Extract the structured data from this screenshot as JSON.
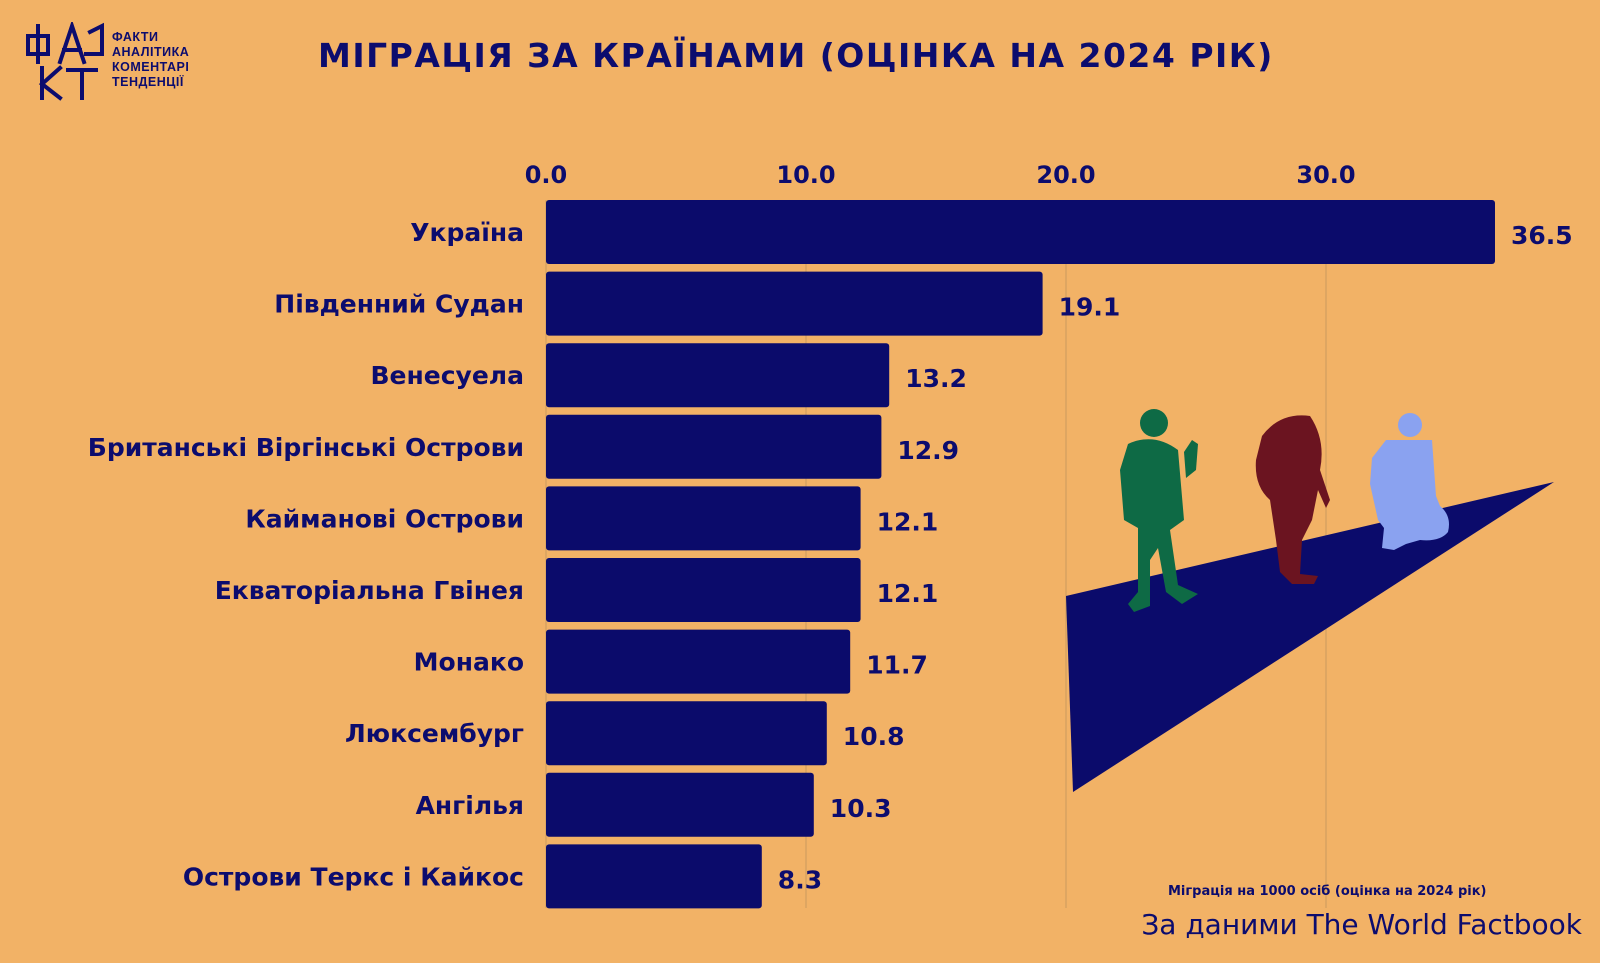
{
  "header": {
    "title": "МІГРАЦІЯ ЗА КРАЇНАМИ (ОЦІНКА НА 2024 РІК)",
    "logo_mark": "ФАКТ",
    "logo_lines": [
      "ФАКТИ",
      "АНАЛІТИКА",
      "КОМЕНТАРІ",
      "ТЕНДЕНЦІЇ"
    ]
  },
  "chart_data": {
    "type": "bar",
    "orientation": "horizontal",
    "categories": [
      "Україна",
      "Південний Судан",
      "Венесуела",
      "Британські Віргінські Острови",
      "Кайманові Острови",
      "Екваторіальна Гвінея",
      "Монако",
      "Люксембург",
      "Ангілья",
      "Острови Теркс і Кайкос"
    ],
    "values": [
      36.5,
      19.1,
      13.2,
      12.9,
      12.1,
      12.1,
      11.7,
      10.8,
      10.3,
      8.3
    ],
    "value_labels": [
      "36.5",
      "19.1",
      "13.2",
      "12.9",
      "12.1",
      "12.1",
      "11.7",
      "10.8",
      "10.3",
      "8.3"
    ],
    "x_ticks": [
      "0.0",
      "10.0",
      "20.0",
      "30.0"
    ],
    "x_tick_values": [
      0,
      10,
      20,
      30
    ],
    "xlim": [
      0,
      36.5
    ],
    "x_axis_position": "top",
    "grid": true,
    "legend": "none",
    "bar_color": "#0b0b6b",
    "background_color": "#f2b266",
    "axis_note": "Міграція на 1000 осіб (оцінка на 2024 рік)"
  },
  "illustration": {
    "description_icons": [
      "road-icon",
      "migrant-green-icon",
      "migrant-red-icon",
      "migrant-blue-icon"
    ],
    "colors": {
      "road": "#0b0b6b",
      "figure_1": "#0e6a45",
      "figure_2": "#6b1420",
      "figure_3": "#8aa2f0"
    }
  },
  "footer": {
    "source": "За даними The World Factbook"
  }
}
